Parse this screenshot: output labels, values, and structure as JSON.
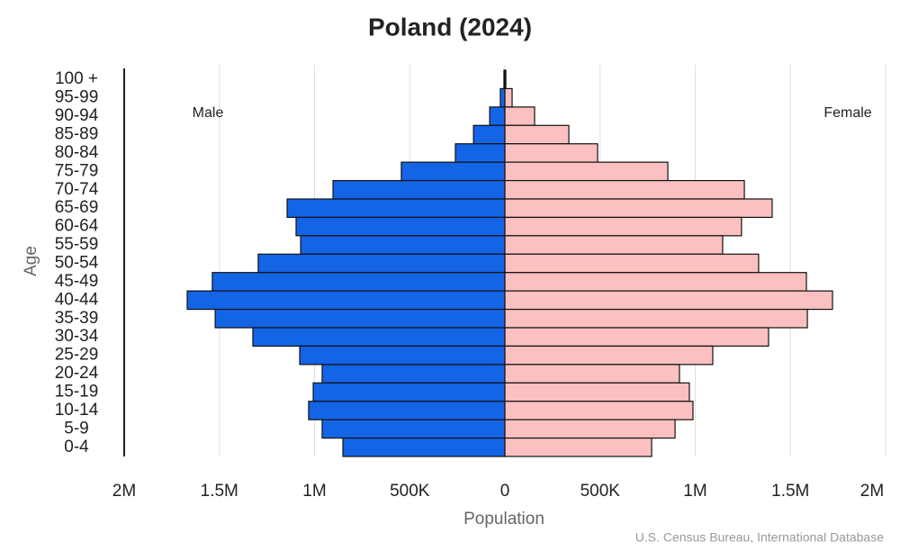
{
  "chart_data": {
    "type": "pyramid",
    "title": "Poland (2024)",
    "x_label": "Population",
    "y_label": "Age",
    "source": "U.S. Census Bureau, International Database",
    "categories": [
      "100 +",
      "95-99",
      "90-94",
      "85-89",
      "80-84",
      "75-79",
      "70-74",
      "65-69",
      "60-64",
      "55-59",
      "50-54",
      "45-49",
      "40-44",
      "35-39",
      "30-34",
      "25-29",
      "20-24",
      "15-19",
      "10-14",
      "5-9",
      "0-4"
    ],
    "series": [
      {
        "name": "Male",
        "color": "#1464e6",
        "side": "left",
        "values": [
          5000,
          24000,
          80000,
          165000,
          260000,
          544000,
          903000,
          1144000,
          1097000,
          1073000,
          1296000,
          1537000,
          1669000,
          1522000,
          1324000,
          1078000,
          960000,
          1007000,
          1031000,
          960000,
          851000
        ]
      },
      {
        "name": "Female",
        "color": "#fbc0bf",
        "side": "right",
        "values": [
          5000,
          38000,
          156000,
          336000,
          487000,
          856000,
          1258000,
          1404000,
          1243000,
          1144000,
          1333000,
          1584000,
          1721000,
          1589000,
          1385000,
          1092000,
          917000,
          969000,
          988000,
          894000,
          771000
        ]
      }
    ],
    "xlim": [
      -2000000,
      2000000
    ],
    "xticks": [
      {
        "value": -2000000,
        "label": "2M"
      },
      {
        "value": -1500000,
        "label": "1.5M"
      },
      {
        "value": -1000000,
        "label": "1M"
      },
      {
        "value": -500000,
        "label": "500K"
      },
      0,
      {
        "value": 500000,
        "label": "500K"
      },
      {
        "value": 1000000,
        "label": "1M"
      },
      {
        "value": 1500000,
        "label": "1.5M"
      },
      {
        "value": 2000000,
        "label": "2M"
      }
    ],
    "grid": true
  }
}
